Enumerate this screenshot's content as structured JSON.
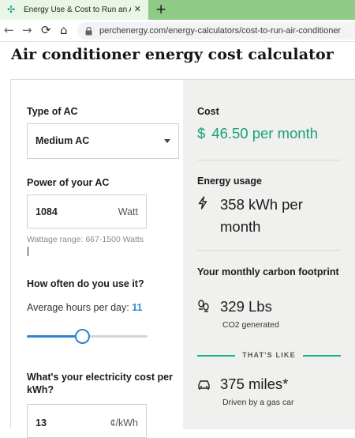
{
  "browser": {
    "tab_title": "Energy Use & Cost to Run an Air",
    "tab_close": "✕",
    "new_tab": "+",
    "url": "perchenergy.com/energy-calculators/cost-to-run-air-conditioner"
  },
  "page": {
    "title": "Air conditioner energy cost calculator"
  },
  "inputs": {
    "ac_type_label": "Type of AC",
    "ac_type_value": "Medium AC",
    "power_label": "Power of your AC",
    "power_value": "1084",
    "power_unit": "Watt",
    "wattage_hint": "Wattage range: 667-1500 Watts",
    "usage_label": "How often do you use it?",
    "hours_label": "Average hours per day:",
    "hours_value": "11",
    "hours_slider_fraction": 0.46,
    "cost_label": "What's your electricity cost per kWh?",
    "cost_value": "13",
    "cost_unit": "¢/kWh"
  },
  "results": {
    "cost_label": "Cost",
    "cost_symbol": "$",
    "cost_value": "46.50 per month",
    "energy_label": "Energy usage",
    "energy_value": "358 kWh per month",
    "carbon_label": "Your monthly carbon footprint",
    "carbon_value": "329 Lbs",
    "carbon_sub": "CO2 generated",
    "thats_like": "THAT'S LIKE",
    "miles_value": "375 miles*",
    "miles_sub": "Driven by a gas car"
  },
  "colors": {
    "accent_green": "#1a9e7b",
    "slider_blue": "#2f83d0",
    "tab_strip": "#8fcb86"
  },
  "icons": {
    "energy": "lightning-bolt-icon",
    "carbon": "footprint-icon",
    "miles": "car-icon"
  }
}
